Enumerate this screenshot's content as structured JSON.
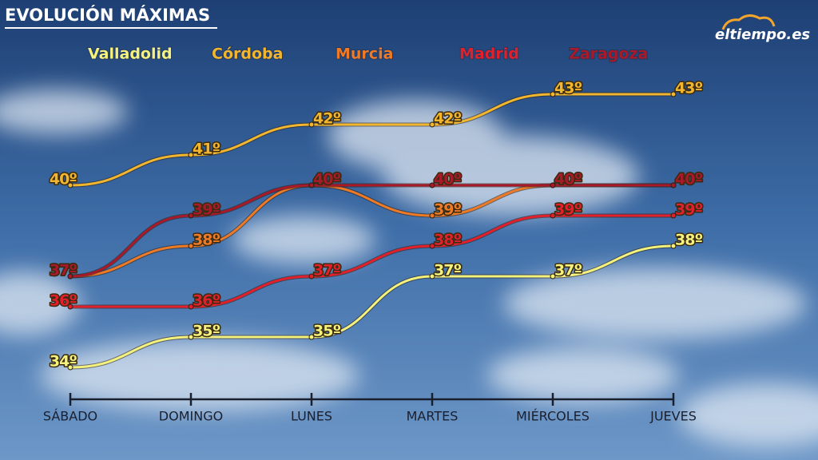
{
  "chart_data": {
    "type": "line",
    "title": "EVOLUCIÓN MÁXIMAS",
    "logo": "eltiempo.es",
    "categories": [
      "SÁBADO",
      "DOMINGO",
      "LUNES",
      "MARTES",
      "MIÉRCOLES",
      "JUEVES"
    ],
    "series": [
      {
        "name": "Valladolid",
        "color": "#f4f27c",
        "values": [
          34,
          35,
          35,
          37,
          37,
          38
        ],
        "value_labels": [
          "34º",
          "35º",
          "35º",
          "37º",
          "37º",
          "38º"
        ]
      },
      {
        "name": "Córdoba",
        "color": "#f2b62e",
        "values": [
          40,
          41,
          42,
          42,
          43,
          43
        ],
        "value_labels": [
          "40º",
          "41º",
          "42º",
          "42º",
          "43º",
          "43º"
        ]
      },
      {
        "name": "Murcia",
        "color": "#ee7a26",
        "values": [
          37,
          38,
          40,
          39,
          40,
          40
        ],
        "value_labels": [
          "37º",
          "38º",
          "40º",
          "39º",
          "40º",
          "40º"
        ]
      },
      {
        "name": "Madrid",
        "color": "#e2202c",
        "values": [
          36,
          36,
          37,
          38,
          39,
          39
        ],
        "value_labels": [
          "36º",
          "36º",
          "37º",
          "38º",
          "39º",
          "39º"
        ]
      },
      {
        "name": "Zaragoza",
        "color": "#a81a2a",
        "values": [
          37,
          39,
          40,
          40,
          40,
          40
        ],
        "value_labels": [
          "37º",
          "39º",
          "40º",
          "40º",
          "40º",
          "40º"
        ]
      }
    ]
  }
}
